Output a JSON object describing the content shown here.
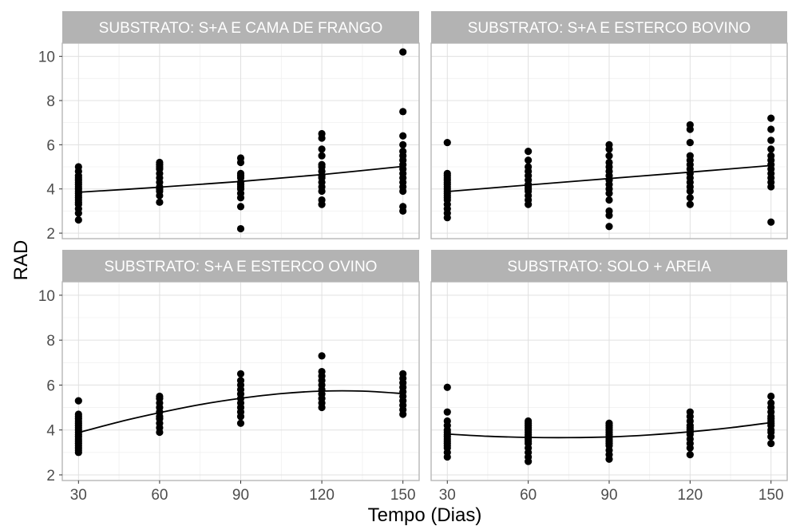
{
  "chart_data": {
    "type": "scatter",
    "facet_layout": "2x2",
    "xlabel": "Tempo (Dias)",
    "ylabel": "RAD",
    "x_ticks": [
      30,
      60,
      90,
      120,
      150
    ],
    "y_ticks": [
      2,
      4,
      6,
      8,
      10
    ],
    "xlim": [
      24,
      156
    ],
    "ylim": [
      1.75,
      10.6
    ],
    "grid": true,
    "panels": [
      {
        "title": "SUBSTRATO: S+A E CAMA DE FRANGO",
        "points": [
          [
            30,
            2.6
          ],
          [
            30,
            2.9
          ],
          [
            30,
            3.1
          ],
          [
            30,
            3.3
          ],
          [
            30,
            3.4
          ],
          [
            30,
            3.5
          ],
          [
            30,
            3.6
          ],
          [
            30,
            3.7
          ],
          [
            30,
            3.8
          ],
          [
            30,
            3.9
          ],
          [
            30,
            4.0
          ],
          [
            30,
            4.1
          ],
          [
            30,
            4.2
          ],
          [
            30,
            4.3
          ],
          [
            30,
            4.4
          ],
          [
            30,
            4.5
          ],
          [
            30,
            4.6
          ],
          [
            30,
            4.8
          ],
          [
            30,
            5.0
          ],
          [
            60,
            3.4
          ],
          [
            60,
            3.7
          ],
          [
            60,
            3.9
          ],
          [
            60,
            4.0
          ],
          [
            60,
            4.1
          ],
          [
            60,
            4.3
          ],
          [
            60,
            4.5
          ],
          [
            60,
            4.7
          ],
          [
            60,
            4.9
          ],
          [
            60,
            5.0
          ],
          [
            60,
            5.1
          ],
          [
            60,
            5.2
          ],
          [
            90,
            2.2
          ],
          [
            90,
            3.2
          ],
          [
            90,
            3.6
          ],
          [
            90,
            3.8
          ],
          [
            90,
            4.0
          ],
          [
            90,
            4.1
          ],
          [
            90,
            4.2
          ],
          [
            90,
            4.3
          ],
          [
            90,
            4.5
          ],
          [
            90,
            4.6
          ],
          [
            90,
            4.7
          ],
          [
            90,
            5.2
          ],
          [
            90,
            5.4
          ],
          [
            120,
            3.3
          ],
          [
            120,
            3.5
          ],
          [
            120,
            3.9
          ],
          [
            120,
            4.1
          ],
          [
            120,
            4.3
          ],
          [
            120,
            4.5
          ],
          [
            120,
            4.6
          ],
          [
            120,
            4.8
          ],
          [
            120,
            5.0
          ],
          [
            120,
            5.1
          ],
          [
            120,
            5.5
          ],
          [
            120,
            5.8
          ],
          [
            120,
            6.3
          ],
          [
            120,
            6.5
          ],
          [
            150,
            3.0
          ],
          [
            150,
            3.2
          ],
          [
            150,
            3.9
          ],
          [
            150,
            4.1
          ],
          [
            150,
            4.3
          ],
          [
            150,
            4.5
          ],
          [
            150,
            4.7
          ],
          [
            150,
            4.9
          ],
          [
            150,
            5.1
          ],
          [
            150,
            5.3
          ],
          [
            150,
            5.5
          ],
          [
            150,
            5.7
          ],
          [
            150,
            6.0
          ],
          [
            150,
            6.4
          ],
          [
            150,
            7.5
          ],
          [
            150,
            10.2
          ]
        ],
        "fit": [
          [
            30,
            3.85
          ],
          [
            60,
            4.08
          ],
          [
            90,
            4.34
          ],
          [
            120,
            4.65
          ],
          [
            150,
            5.02
          ]
        ]
      },
      {
        "title": "SUBSTRATO: S+A E ESTERCO BOVINO",
        "points": [
          [
            30,
            2.7
          ],
          [
            30,
            2.9
          ],
          [
            30,
            3.1
          ],
          [
            30,
            3.3
          ],
          [
            30,
            3.5
          ],
          [
            30,
            3.6
          ],
          [
            30,
            3.7
          ],
          [
            30,
            3.8
          ],
          [
            30,
            3.9
          ],
          [
            30,
            4.0
          ],
          [
            30,
            4.1
          ],
          [
            30,
            4.2
          ],
          [
            30,
            4.3
          ],
          [
            30,
            4.4
          ],
          [
            30,
            4.5
          ],
          [
            30,
            4.6
          ],
          [
            30,
            4.7
          ],
          [
            30,
            6.1
          ],
          [
            60,
            3.3
          ],
          [
            60,
            3.5
          ],
          [
            60,
            3.7
          ],
          [
            60,
            3.9
          ],
          [
            60,
            4.0
          ],
          [
            60,
            4.1
          ],
          [
            60,
            4.2
          ],
          [
            60,
            4.4
          ],
          [
            60,
            4.6
          ],
          [
            60,
            4.8
          ],
          [
            60,
            5.0
          ],
          [
            60,
            5.3
          ],
          [
            60,
            5.7
          ],
          [
            90,
            2.3
          ],
          [
            90,
            2.8
          ],
          [
            90,
            3.0
          ],
          [
            90,
            3.5
          ],
          [
            90,
            3.8
          ],
          [
            90,
            4.0
          ],
          [
            90,
            4.2
          ],
          [
            90,
            4.4
          ],
          [
            90,
            4.6
          ],
          [
            90,
            4.8
          ],
          [
            90,
            5.0
          ],
          [
            90,
            5.2
          ],
          [
            90,
            5.5
          ],
          [
            90,
            5.8
          ],
          [
            90,
            6.0
          ],
          [
            120,
            3.3
          ],
          [
            120,
            3.6
          ],
          [
            120,
            3.9
          ],
          [
            120,
            4.1
          ],
          [
            120,
            4.3
          ],
          [
            120,
            4.5
          ],
          [
            120,
            4.7
          ],
          [
            120,
            4.9
          ],
          [
            120,
            5.1
          ],
          [
            120,
            5.3
          ],
          [
            120,
            5.5
          ],
          [
            120,
            6.1
          ],
          [
            120,
            6.7
          ],
          [
            120,
            6.9
          ],
          [
            150,
            2.5
          ],
          [
            150,
            4.1
          ],
          [
            150,
            4.3
          ],
          [
            150,
            4.5
          ],
          [
            150,
            4.7
          ],
          [
            150,
            4.9
          ],
          [
            150,
            5.1
          ],
          [
            150,
            5.3
          ],
          [
            150,
            5.5
          ],
          [
            150,
            5.8
          ],
          [
            150,
            6.2
          ],
          [
            150,
            6.7
          ],
          [
            150,
            7.2
          ]
        ],
        "fit": [
          [
            30,
            3.88
          ],
          [
            60,
            4.18
          ],
          [
            90,
            4.47
          ],
          [
            120,
            4.76
          ],
          [
            150,
            5.06
          ]
        ]
      },
      {
        "title": "SUBSTRATO: S+A E ESTERCO OVINO",
        "points": [
          [
            30,
            3.0
          ],
          [
            30,
            3.1
          ],
          [
            30,
            3.2
          ],
          [
            30,
            3.3
          ],
          [
            30,
            3.4
          ],
          [
            30,
            3.5
          ],
          [
            30,
            3.6
          ],
          [
            30,
            3.7
          ],
          [
            30,
            3.8
          ],
          [
            30,
            3.9
          ],
          [
            30,
            4.0
          ],
          [
            30,
            4.1
          ],
          [
            30,
            4.2
          ],
          [
            30,
            4.3
          ],
          [
            30,
            4.4
          ],
          [
            30,
            4.5
          ],
          [
            30,
            4.6
          ],
          [
            30,
            4.7
          ],
          [
            30,
            5.3
          ],
          [
            60,
            3.9
          ],
          [
            60,
            4.1
          ],
          [
            60,
            4.3
          ],
          [
            60,
            4.5
          ],
          [
            60,
            4.6
          ],
          [
            60,
            4.8
          ],
          [
            60,
            5.0
          ],
          [
            60,
            5.2
          ],
          [
            60,
            5.4
          ],
          [
            60,
            5.5
          ],
          [
            90,
            4.3
          ],
          [
            90,
            4.6
          ],
          [
            90,
            4.8
          ],
          [
            90,
            5.0
          ],
          [
            90,
            5.2
          ],
          [
            90,
            5.4
          ],
          [
            90,
            5.6
          ],
          [
            90,
            5.8
          ],
          [
            90,
            6.0
          ],
          [
            90,
            6.2
          ],
          [
            90,
            6.5
          ],
          [
            120,
            5.0
          ],
          [
            120,
            5.2
          ],
          [
            120,
            5.4
          ],
          [
            120,
            5.6
          ],
          [
            120,
            5.8
          ],
          [
            120,
            6.0
          ],
          [
            120,
            6.2
          ],
          [
            120,
            6.4
          ],
          [
            120,
            6.6
          ],
          [
            120,
            7.3
          ],
          [
            150,
            4.7
          ],
          [
            150,
            4.9
          ],
          [
            150,
            5.1
          ],
          [
            150,
            5.3
          ],
          [
            150,
            5.5
          ],
          [
            150,
            5.7
          ],
          [
            150,
            5.9
          ],
          [
            150,
            6.1
          ],
          [
            150,
            6.3
          ],
          [
            150,
            6.5
          ]
        ],
        "fit": [
          [
            30,
            3.88
          ],
          [
            45,
            4.36
          ],
          [
            60,
            4.77
          ],
          [
            75,
            5.13
          ],
          [
            90,
            5.41
          ],
          [
            105,
            5.62
          ],
          [
            120,
            5.73
          ],
          [
            135,
            5.73
          ],
          [
            150,
            5.62
          ]
        ]
      },
      {
        "title": "SUBSTRATO: SOLO + AREIA",
        "points": [
          [
            30,
            2.8
          ],
          [
            30,
            3.0
          ],
          [
            30,
            3.2
          ],
          [
            30,
            3.3
          ],
          [
            30,
            3.4
          ],
          [
            30,
            3.5
          ],
          [
            30,
            3.6
          ],
          [
            30,
            3.7
          ],
          [
            30,
            3.8
          ],
          [
            30,
            3.9
          ],
          [
            30,
            4.0
          ],
          [
            30,
            4.2
          ],
          [
            30,
            4.4
          ],
          [
            30,
            4.8
          ],
          [
            30,
            5.9
          ],
          [
            60,
            2.6
          ],
          [
            60,
            2.8
          ],
          [
            60,
            3.0
          ],
          [
            60,
            3.2
          ],
          [
            60,
            3.4
          ],
          [
            60,
            3.5
          ],
          [
            60,
            3.6
          ],
          [
            60,
            3.7
          ],
          [
            60,
            3.8
          ],
          [
            60,
            3.9
          ],
          [
            60,
            4.0
          ],
          [
            60,
            4.1
          ],
          [
            60,
            4.2
          ],
          [
            60,
            4.3
          ],
          [
            60,
            4.4
          ],
          [
            90,
            2.7
          ],
          [
            90,
            2.9
          ],
          [
            90,
            3.1
          ],
          [
            90,
            3.3
          ],
          [
            90,
            3.4
          ],
          [
            90,
            3.5
          ],
          [
            90,
            3.6
          ],
          [
            90,
            3.7
          ],
          [
            90,
            3.8
          ],
          [
            90,
            3.9
          ],
          [
            90,
            4.0
          ],
          [
            90,
            4.1
          ],
          [
            90,
            4.2
          ],
          [
            90,
            4.3
          ],
          [
            120,
            2.9
          ],
          [
            120,
            3.2
          ],
          [
            120,
            3.4
          ],
          [
            120,
            3.6
          ],
          [
            120,
            3.8
          ],
          [
            120,
            3.9
          ],
          [
            120,
            4.0
          ],
          [
            120,
            4.1
          ],
          [
            120,
            4.2
          ],
          [
            120,
            4.4
          ],
          [
            120,
            4.6
          ],
          [
            120,
            4.8
          ],
          [
            150,
            3.4
          ],
          [
            150,
            3.7
          ],
          [
            150,
            3.9
          ],
          [
            150,
            4.0
          ],
          [
            150,
            4.2
          ],
          [
            150,
            4.3
          ],
          [
            150,
            4.4
          ],
          [
            150,
            4.5
          ],
          [
            150,
            4.6
          ],
          [
            150,
            4.8
          ],
          [
            150,
            5.0
          ],
          [
            150,
            5.2
          ],
          [
            150,
            5.5
          ]
        ],
        "fit": [
          [
            30,
            3.82
          ],
          [
            45,
            3.72
          ],
          [
            60,
            3.67
          ],
          [
            75,
            3.66
          ],
          [
            90,
            3.69
          ],
          [
            105,
            3.78
          ],
          [
            120,
            3.92
          ],
          [
            135,
            4.1
          ],
          [
            150,
            4.33
          ]
        ]
      }
    ]
  }
}
